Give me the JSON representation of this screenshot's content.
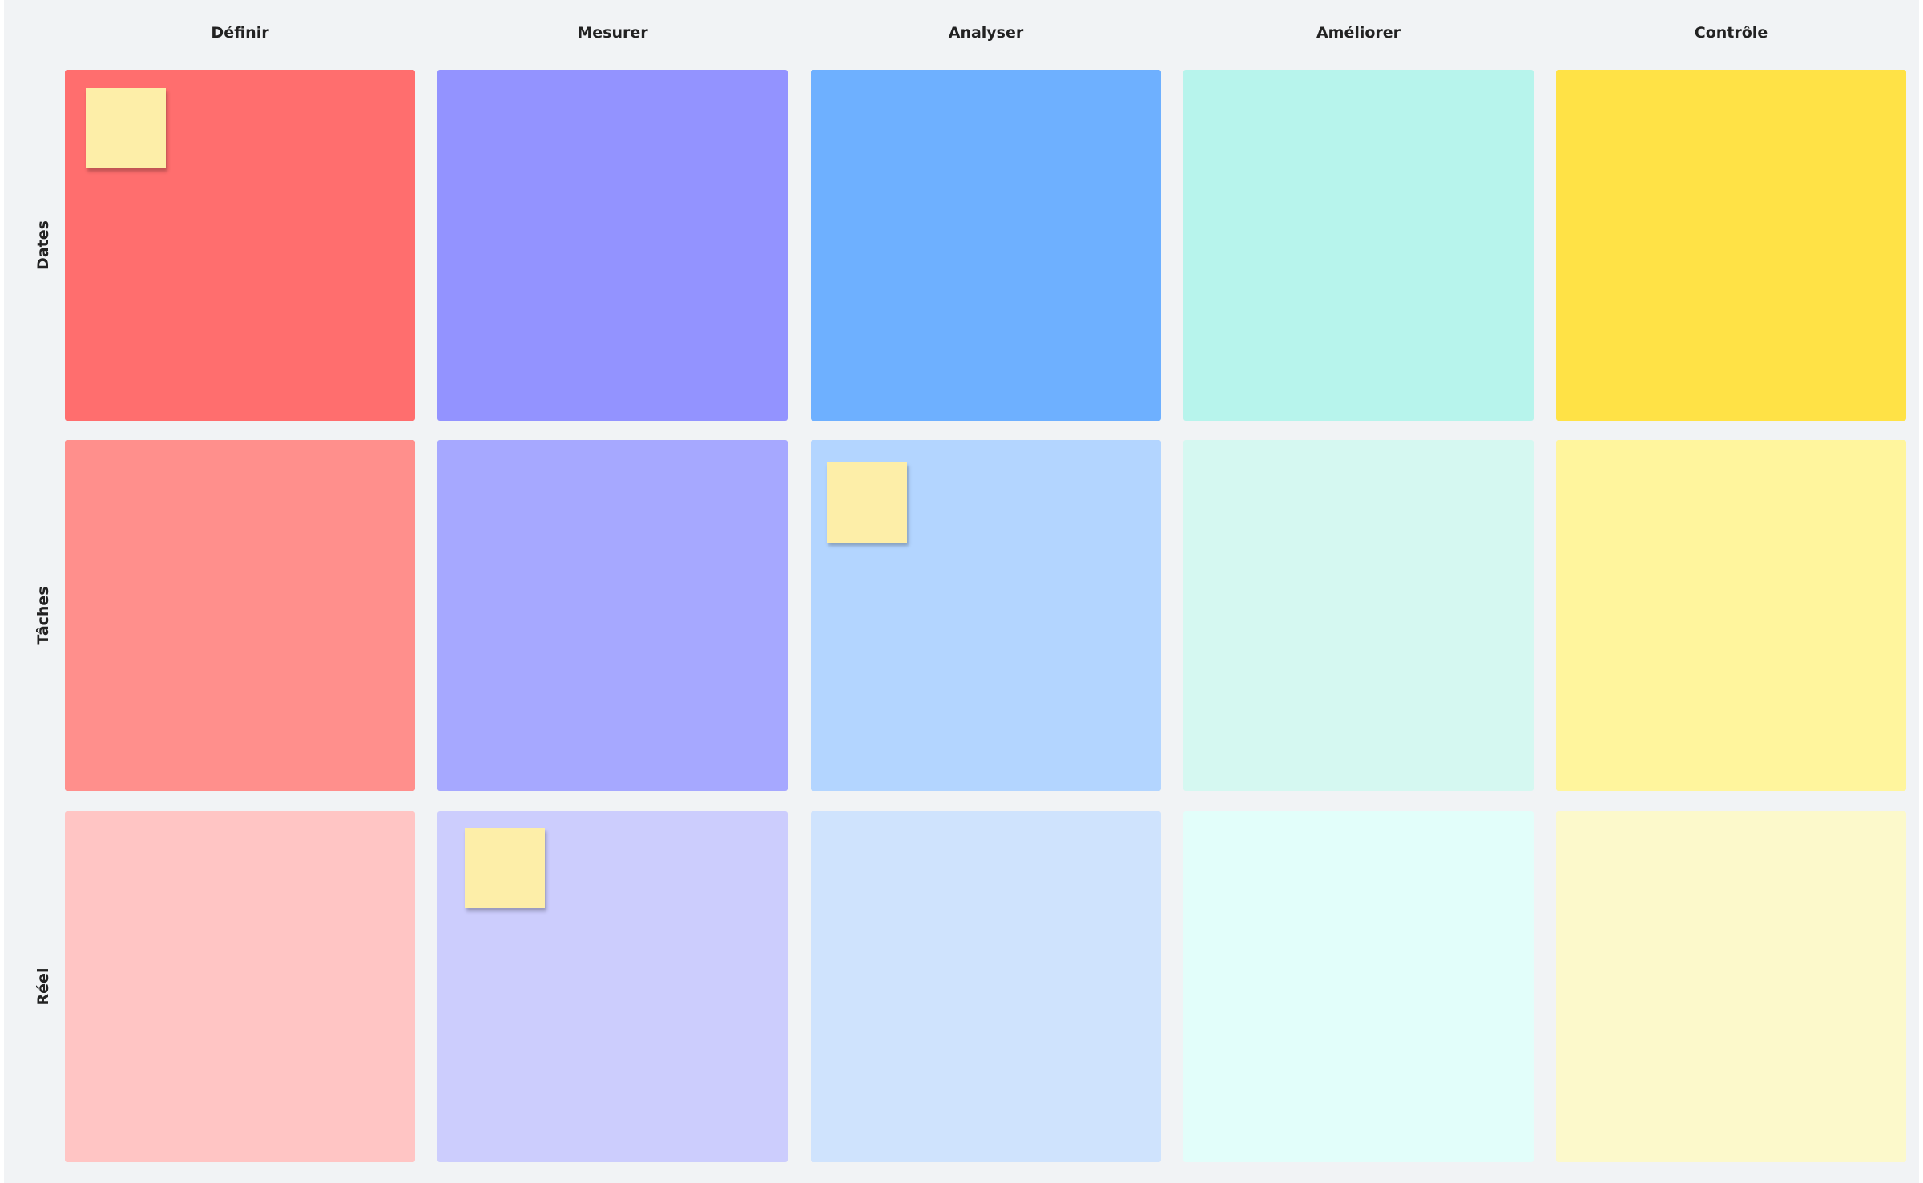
{
  "columns": [
    "Définir",
    "Mesurer",
    "Analyser",
    "Améliorer",
    "Contrôle"
  ],
  "rows": [
    "Dates",
    "Tâches",
    "Réel"
  ]
}
